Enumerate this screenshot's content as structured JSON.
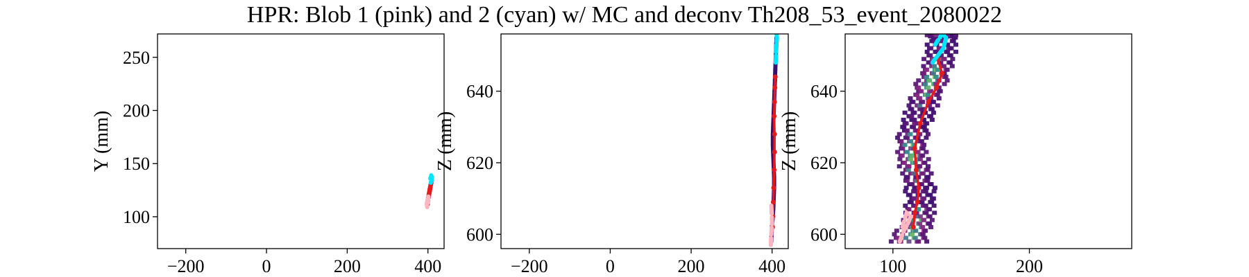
{
  "title": "HPR: Blob 1 (pink) and 2 (cyan) w/ MC and deconv Th208_53_event_2080022",
  "colors": {
    "blob1": "#ffb6c1",
    "blob2": "#00e5ff",
    "mc_track": "#e41a1c",
    "axis": "#000000",
    "heat_low": "#3b0f70",
    "heat_mid": "#8c2981",
    "heat_high": "#2a9d8f",
    "heat_peak": "#7fbf5f"
  },
  "chart_data": [
    {
      "type": "scatter",
      "panel": "xy",
      "xlabel": "",
      "ylabel": "Y (mm)",
      "xlim": [
        -270,
        440
      ],
      "ylim": [
        70,
        272
      ],
      "xticks": [
        -200,
        0,
        200,
        400
      ],
      "yticks": [
        100,
        150,
        200,
        250
      ],
      "xtick_labels": [
        "−200",
        "0",
        "200",
        "400"
      ],
      "ytick_labels": [
        "100",
        "150",
        "200",
        "250"
      ],
      "series": [
        {
          "role": "mc_track",
          "color": "red",
          "x": [
            399,
            400,
            401,
            402,
            403,
            404,
            405,
            406,
            407,
            408
          ],
          "y": [
            112,
            115,
            118,
            120,
            122,
            124,
            126,
            128,
            130,
            132
          ]
        },
        {
          "role": "blob1",
          "color": "pink",
          "x": [
            398,
            397,
            399,
            401,
            400
          ],
          "y": [
            109,
            112,
            116,
            119,
            113
          ]
        },
        {
          "role": "blob2",
          "color": "cyan",
          "x": [
            407,
            409,
            410,
            408,
            406
          ],
          "y": [
            132,
            134,
            137,
            139,
            136
          ]
        }
      ]
    },
    {
      "type": "scatter",
      "panel": "xz",
      "xlabel": "",
      "ylabel": "Z (mm)",
      "xlim": [
        -270,
        440
      ],
      "ylim": [
        596,
        656
      ],
      "xticks": [
        -200,
        0,
        200,
        400
      ],
      "yticks": [
        600,
        620,
        640
      ],
      "xtick_labels": [
        "−200",
        "0",
        "200",
        "400"
      ],
      "ytick_labels": [
        "600",
        "620",
        "640"
      ],
      "series": [
        {
          "role": "reconstruction",
          "color": "dark",
          "x": [
            398,
            399,
            401,
            403,
            404,
            405,
            405,
            404,
            403,
            402,
            402,
            403,
            404,
            405,
            406,
            407,
            408,
            409,
            410,
            411
          ],
          "y": [
            598,
            601,
            604,
            607,
            610,
            613,
            616,
            619,
            622,
            625,
            628,
            631,
            634,
            637,
            640,
            643,
            646,
            649,
            652,
            655
          ]
        },
        {
          "role": "mc_track",
          "color": "red",
          "x": [
            401,
            402,
            403,
            404,
            405,
            406,
            406,
            405,
            406,
            407,
            408
          ],
          "y": [
            602,
            605,
            609,
            613,
            618,
            623,
            628,
            633,
            637,
            641,
            644
          ]
        },
        {
          "role": "blob1",
          "color": "pink",
          "x": [
            397,
            398,
            400,
            399,
            398
          ],
          "y": [
            597,
            600,
            603,
            606,
            608
          ]
        },
        {
          "role": "blob2",
          "color": "cyan",
          "x": [
            409,
            410,
            411,
            412,
            411
          ],
          "y": [
            648,
            651,
            653,
            655,
            656
          ]
        }
      ]
    },
    {
      "type": "heatmap",
      "panel": "yz",
      "xlabel": "",
      "ylabel": "Z (mm)",
      "xlim": [
        65,
        275
      ],
      "ylim": [
        596,
        656
      ],
      "xticks": [
        100,
        200
      ],
      "yticks": [
        600,
        620,
        640
      ],
      "xtick_labels": [
        "100",
        "200"
      ],
      "ytick_labels": [
        "600",
        "620",
        "640"
      ],
      "track": {
        "y": [
          112,
          114,
          117,
          118,
          119,
          118,
          116,
          114,
          113,
          112,
          113,
          115,
          118,
          121,
          124,
          127,
          130,
          132,
          134,
          135,
          134
        ],
        "z": [
          598,
          601,
          604,
          607,
          610,
          613,
          616,
          619,
          622,
          625,
          628,
          631,
          634,
          637,
          640,
          643,
          646,
          649,
          652,
          655,
          656
        ]
      },
      "series": [
        {
          "role": "mc_track",
          "color": "red",
          "x": [
            115,
            116,
            118,
            119,
            117,
            116,
            120,
            126,
            132,
            136,
            133
          ],
          "y": [
            602,
            606,
            609,
            613,
            618,
            624,
            631,
            637,
            641,
            645,
            649
          ]
        },
        {
          "role": "blob1",
          "color": "pink",
          "x": [
            105,
            108,
            111,
            113,
            110,
            107
          ],
          "y": [
            598,
            601,
            603,
            605,
            606,
            602
          ]
        },
        {
          "role": "blob2",
          "color": "cyan",
          "x": [
            129,
            133,
            137,
            139,
            136,
            131
          ],
          "y": [
            648,
            650,
            652,
            655,
            656,
            653
          ]
        }
      ]
    }
  ]
}
